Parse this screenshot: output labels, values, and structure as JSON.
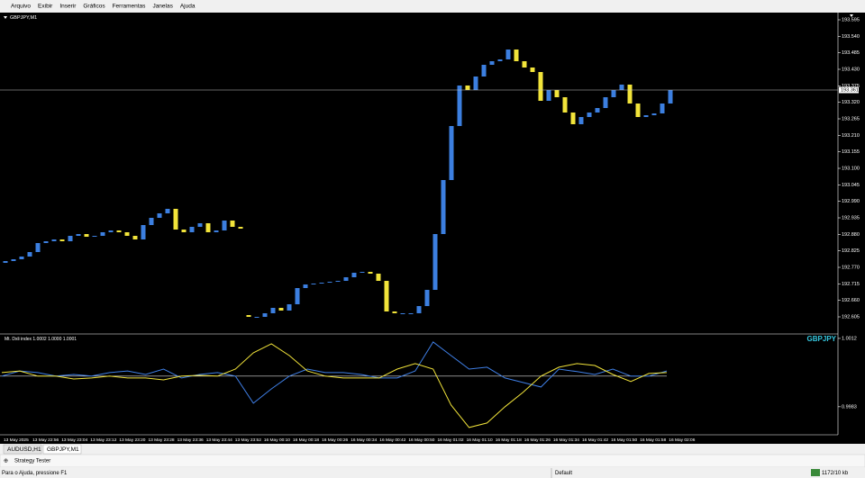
{
  "menu": [
    "Arquivo",
    "Exibir",
    "Inserir",
    "Gráficos",
    "Ferramentas",
    "Janelas",
    "Ajuda"
  ],
  "chart_data": [
    {
      "type": "candlestick",
      "title": "GBPJPY,M1",
      "bull_color": "#3c7fe0",
      "bear_color": "#f2e43a",
      "open": [
        192.785,
        192.791,
        192.797,
        192.806,
        192.821,
        192.851,
        192.857,
        192.863,
        192.857,
        192.875,
        192.881,
        192.872,
        192.875,
        192.887,
        192.893,
        192.887,
        192.875,
        192.863,
        192.911,
        192.935,
        192.95,
        192.965,
        192.896,
        192.887,
        192.905,
        192.917,
        192.887,
        192.893,
        192.926,
        192.905,
        192.611,
        192.605,
        192.605,
        192.617,
        192.635,
        192.626,
        192.647,
        192.701,
        192.713,
        192.716,
        192.719,
        192.722,
        192.725,
        192.737,
        192.752,
        192.755,
        192.749,
        192.725,
        192.623,
        192.617,
        192.617,
        192.617,
        192.641,
        192.695,
        192.881,
        193.061,
        193.241,
        193.376,
        193.361,
        193.406,
        193.445,
        193.457,
        193.463,
        193.496,
        193.457,
        193.436,
        193.421,
        193.325,
        193.361,
        193.337,
        193.286,
        193.247,
        193.271,
        193.286,
        193.301,
        193.337,
        193.361,
        193.379,
        193.316,
        193.271,
        193.277,
        193.283,
        193.316
      ],
      "close": [
        192.791,
        192.797,
        192.806,
        192.821,
        192.851,
        192.857,
        192.863,
        192.857,
        192.875,
        192.881,
        192.872,
        192.875,
        192.887,
        192.893,
        192.887,
        192.875,
        192.863,
        192.911,
        192.935,
        192.95,
        192.965,
        192.896,
        192.887,
        192.905,
        192.917,
        192.887,
        192.893,
        192.926,
        192.905,
        192.899,
        192.605,
        192.605,
        192.617,
        192.635,
        192.626,
        192.647,
        192.701,
        192.713,
        192.716,
        192.719,
        192.722,
        192.725,
        192.737,
        192.752,
        192.755,
        192.749,
        192.725,
        192.623,
        192.617,
        192.617,
        192.617,
        192.641,
        192.695,
        192.881,
        193.061,
        193.241,
        193.376,
        193.361,
        193.406,
        193.445,
        193.457,
        193.463,
        193.496,
        193.457,
        193.436,
        193.421,
        193.325,
        193.361,
        193.337,
        193.286,
        193.247,
        193.271,
        193.286,
        193.301,
        193.337,
        193.361,
        193.379,
        193.316,
        193.271,
        193.277,
        193.283,
        193.316,
        193.361
      ],
      "current_price": 193.361,
      "ylim": [
        192.551,
        193.619
      ],
      "yticks": [
        193.595,
        {
          "value": 193.54,
          "label": "193.540"
        },
        193.485,
        {
          "value": 193.43,
          "label": "193.430"
        },
        193.375,
        {
          "value": 193.32,
          "label": "193.320"
        },
        193.265,
        {
          "value": 193.21,
          "label": "193.210"
        },
        193.155,
        {
          "value": 193.1,
          "label": "193.100"
        },
        193.045,
        {
          "value": 192.99,
          "label": "192.990"
        },
        192.935,
        {
          "value": 192.88,
          "label": "192.880"
        },
        192.825,
        {
          "value": 192.77,
          "label": "192.770"
        },
        192.715,
        {
          "value": 192.66,
          "label": "192.660"
        },
        192.605
      ],
      "time_labels": [
        "13 May 2025",
        "13 May 22:56",
        "13 May 23:04",
        "13 May 23:12",
        "13 May 23:20",
        "13 May 23:28",
        "13 May 23:36",
        "13 May 23:44",
        "13 May 23:52",
        "16 May 00:10",
        "16 May 00:18",
        "16 May 00:26",
        "16 May 00:34",
        "16 May 00:42",
        "16 May 00:50",
        "16 May 01:02",
        "16 May 01:10",
        "16 May 01:18",
        "16 May 01:26",
        "16 May 01:34",
        "16 May 01:42",
        "16 May 01:50",
        "16 May 01:58",
        "16 May 02:06"
      ]
    },
    {
      "type": "line",
      "title": "Mt. Dxli index 1.0002 1.0000 1.0001",
      "symbol": "GBPJPY",
      "series": [
        {
          "color": "#3f7fe6",
          "values": [
            0.9996,
            0.99982,
            0.99975,
            0.9996,
            0.99967,
            0.9996,
            0.99975,
            0.99982,
            0.99967,
            0.9999,
            0.99952,
            0.99967,
            0.99975,
            0.9996,
            0.99845,
            0.99906,
            0.9996,
            0.9999,
            0.99975,
            0.99975,
            0.99967,
            0.99952,
            0.99952,
            0.99982,
            1.00105,
            1.00047,
            0.9999,
            0.99998,
            0.99952,
            0.99933,
            0.99914,
            0.9999,
            0.99979,
            0.99967,
            0.9999,
            0.9996,
            0.9996,
            0.99982
          ]
        },
        {
          "color": "#f2e43a",
          "values": [
            0.99975,
            0.99982,
            0.9996,
            0.9996,
            0.99948,
            0.99952,
            0.9996,
            0.99952,
            0.99952,
            0.99944,
            0.9996,
            0.99963,
            0.9996,
            0.9999,
            1.00059,
            1.00097,
            1.00047,
            0.99982,
            0.9996,
            0.99952,
            0.99952,
            0.99952,
            0.9999,
            1.00013,
            0.9999,
            0.99837,
            0.99742,
            0.99761,
            0.9983,
            0.99891,
            0.9996,
            0.99998,
            1.00013,
            1.00005,
            0.99967,
            0.99937,
            0.99971,
            0.99975
          ]
        }
      ],
      "level": 0.9996,
      "ylim": [
        0.99711,
        1.00135
      ],
      "yticks": [
        1.0012,
        0.9983
      ]
    }
  ],
  "tabs": [
    "AUDUSD,H1",
    "GBPJPY,M1"
  ],
  "panel": "Strategy Tester",
  "status": {
    "help": "Para o Ajuda, pressione F1",
    "profile": "Default",
    "traffic": "1172/10 kb"
  }
}
